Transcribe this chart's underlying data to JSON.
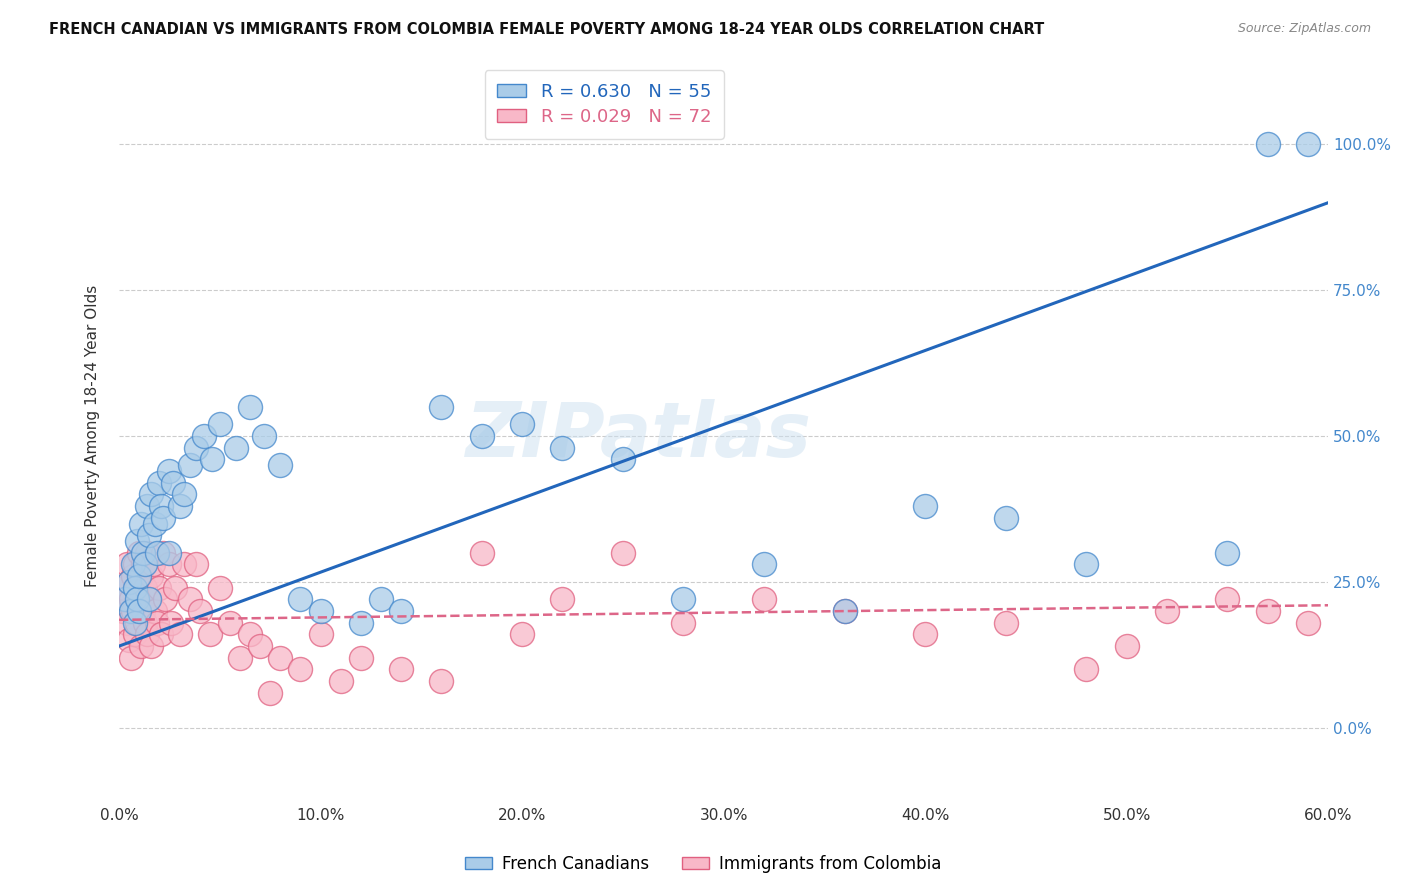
{
  "title": "FRENCH CANADIAN VS IMMIGRANTS FROM COLOMBIA FEMALE POVERTY AMONG 18-24 YEAR OLDS CORRELATION CHART",
  "source": "Source: ZipAtlas.com",
  "ylabel": "Female Poverty Among 18-24 Year Olds",
  "xlim": [
    0,
    0.6
  ],
  "ylim": [
    -0.13,
    1.13
  ],
  "xtick_labels": [
    "0.0%",
    "10.0%",
    "20.0%",
    "30.0%",
    "40.0%",
    "50.0%",
    "60.0%"
  ],
  "xtick_vals": [
    0.0,
    0.1,
    0.2,
    0.3,
    0.4,
    0.5,
    0.6
  ],
  "ytick_labels": [
    "0.0%",
    "25.0%",
    "50.0%",
    "75.0%",
    "100.0%"
  ],
  "ytick_vals": [
    0.0,
    0.25,
    0.5,
    0.75,
    1.0
  ],
  "blue_R": 0.63,
  "blue_N": 55,
  "pink_R": 0.029,
  "pink_N": 72,
  "blue_color": "#aacce8",
  "pink_color": "#f8b8c8",
  "blue_edge_color": "#4488cc",
  "pink_edge_color": "#e06080",
  "blue_line_color": "#2266bb",
  "pink_line_color": "#dd6688",
  "watermark": "ZIPatlas",
  "legend_label_blue": "French Canadians",
  "legend_label_pink": "Immigrants from Colombia",
  "blue_line_x0": 0.0,
  "blue_line_y0": 0.14,
  "blue_line_x1": 0.6,
  "blue_line_y1": 0.9,
  "pink_line_x0": 0.0,
  "pink_line_y0": 0.185,
  "pink_line_x1": 0.6,
  "pink_line_y1": 0.21,
  "blue_x": [
    0.003,
    0.005,
    0.006,
    0.007,
    0.008,
    0.008,
    0.009,
    0.009,
    0.01,
    0.01,
    0.011,
    0.012,
    0.013,
    0.014,
    0.015,
    0.015,
    0.016,
    0.018,
    0.019,
    0.02,
    0.021,
    0.022,
    0.025,
    0.025,
    0.027,
    0.03,
    0.032,
    0.035,
    0.038,
    0.042,
    0.046,
    0.05,
    0.058,
    0.065,
    0.072,
    0.08,
    0.09,
    0.1,
    0.12,
    0.13,
    0.14,
    0.16,
    0.18,
    0.2,
    0.22,
    0.25,
    0.28,
    0.32,
    0.36,
    0.4,
    0.44,
    0.48,
    0.55,
    0.57,
    0.59
  ],
  "blue_y": [
    0.22,
    0.25,
    0.2,
    0.28,
    0.24,
    0.18,
    0.22,
    0.32,
    0.2,
    0.26,
    0.35,
    0.3,
    0.28,
    0.38,
    0.33,
    0.22,
    0.4,
    0.35,
    0.3,
    0.42,
    0.38,
    0.36,
    0.3,
    0.44,
    0.42,
    0.38,
    0.4,
    0.45,
    0.48,
    0.5,
    0.46,
    0.52,
    0.48,
    0.55,
    0.5,
    0.45,
    0.22,
    0.2,
    0.18,
    0.22,
    0.2,
    0.55,
    0.5,
    0.52,
    0.48,
    0.46,
    0.22,
    0.28,
    0.2,
    0.38,
    0.36,
    0.28,
    0.3,
    1.0,
    1.0
  ],
  "pink_x": [
    0.001,
    0.002,
    0.003,
    0.004,
    0.004,
    0.005,
    0.005,
    0.006,
    0.006,
    0.007,
    0.007,
    0.008,
    0.008,
    0.009,
    0.009,
    0.01,
    0.01,
    0.011,
    0.011,
    0.012,
    0.012,
    0.013,
    0.013,
    0.014,
    0.014,
    0.015,
    0.016,
    0.016,
    0.017,
    0.018,
    0.019,
    0.02,
    0.021,
    0.022,
    0.023,
    0.025,
    0.026,
    0.028,
    0.03,
    0.032,
    0.035,
    0.038,
    0.04,
    0.045,
    0.05,
    0.055,
    0.06,
    0.065,
    0.07,
    0.075,
    0.08,
    0.09,
    0.1,
    0.11,
    0.12,
    0.14,
    0.16,
    0.18,
    0.2,
    0.22,
    0.25,
    0.28,
    0.32,
    0.36,
    0.4,
    0.44,
    0.48,
    0.5,
    0.52,
    0.55,
    0.57,
    0.59
  ],
  "pink_y": [
    0.22,
    0.2,
    0.24,
    0.28,
    0.18,
    0.25,
    0.15,
    0.22,
    0.12,
    0.26,
    0.2,
    0.28,
    0.16,
    0.24,
    0.18,
    0.22,
    0.3,
    0.14,
    0.26,
    0.2,
    0.28,
    0.18,
    0.24,
    0.16,
    0.3,
    0.22,
    0.26,
    0.14,
    0.28,
    0.2,
    0.18,
    0.24,
    0.16,
    0.3,
    0.22,
    0.28,
    0.18,
    0.24,
    0.16,
    0.28,
    0.22,
    0.28,
    0.2,
    0.16,
    0.24,
    0.18,
    0.12,
    0.16,
    0.14,
    0.06,
    0.12,
    0.1,
    0.16,
    0.08,
    0.12,
    0.1,
    0.08,
    0.3,
    0.16,
    0.22,
    0.3,
    0.18,
    0.22,
    0.2,
    0.16,
    0.18,
    0.1,
    0.14,
    0.2,
    0.22,
    0.2,
    0.18
  ]
}
